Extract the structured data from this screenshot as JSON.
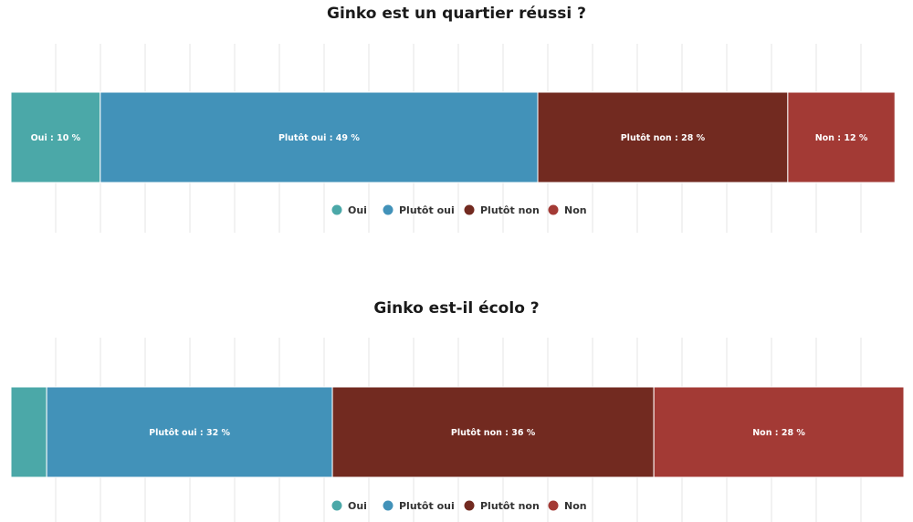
{
  "chart_data": [
    {
      "type": "bar",
      "orientation": "horizontal-stacked-100",
      "title": "Ginko est un quartier réussi ?",
      "xlabel": "",
      "ylabel": "",
      "xlim": [
        0,
        100
      ],
      "grid": true,
      "legend": "bottom-center",
      "series": [
        {
          "name": "Oui",
          "value": 10,
          "label": "Oui : 10 %"
        },
        {
          "name": "Plutôt oui",
          "value": 49,
          "label": "Plutôt oui : 49 %"
        },
        {
          "name": "Plutôt non",
          "value": 28,
          "label": "Plutôt non : 28 %"
        },
        {
          "name": "Non",
          "value": 12,
          "label": "Non : 12 %"
        }
      ]
    },
    {
      "type": "bar",
      "orientation": "horizontal-stacked-100",
      "title": "Ginko est-il écolo ?",
      "xlabel": "",
      "ylabel": "",
      "xlim": [
        0,
        100
      ],
      "grid": true,
      "legend": "bottom-center",
      "series": [
        {
          "name": "Oui",
          "value": 4,
          "label": ""
        },
        {
          "name": "Plutôt oui",
          "value": 32,
          "label": "Plutôt oui : 32 %"
        },
        {
          "name": "Plutôt non",
          "value": 36,
          "label": "Plutôt non : 36 %"
        },
        {
          "name": "Non",
          "value": 28,
          "label": "Non : 28 %"
        }
      ]
    }
  ],
  "colors": {
    "Oui": "#4ba8a8",
    "Plutôt oui": "#4292b9",
    "Plutôt non": "#722a20",
    "Non": "#a33a35"
  }
}
